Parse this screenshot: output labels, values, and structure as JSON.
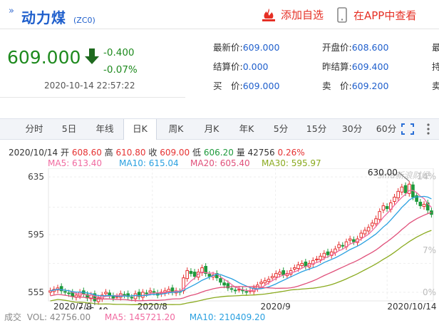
{
  "header": {
    "title": "动力煤",
    "code": "(ZC0)",
    "add_favorite": "添加自选",
    "view_in_app": "在APP中查看"
  },
  "price": {
    "last": "609.000",
    "change": "-0.400",
    "change_pct": "-0.07%",
    "timestamp": "2020-10-14 22:57:22"
  },
  "quote": [
    [
      {
        "k": "最新价:",
        "v": "609.000"
      },
      {
        "k": "开盘价:",
        "v": "608.600"
      }
    ],
    [
      {
        "k": "结算价:",
        "v": "0.000"
      },
      {
        "k": "昨结算:",
        "v": "609.400"
      }
    ],
    [
      {
        "k": "买　价:",
        "v": "609.000"
      },
      {
        "k": "卖　价:",
        "v": "609.200"
      }
    ]
  ],
  "quote_cut": [
    "最",
    "持",
    "卖"
  ],
  "tabs": [
    "分时",
    "5日",
    "年线",
    "日K",
    "周K",
    "月K",
    "年K",
    "5分",
    "15分",
    "30分",
    "60分"
  ],
  "active_tab": "日K",
  "ohlc": {
    "date": "2020/10/14",
    "open_label": "开",
    "open": "608.60",
    "high_label": "高",
    "high": "610.80",
    "close_label": "收",
    "close": "609.00",
    "low_label": "低",
    "low": "606.20",
    "volume": "量 42756",
    "pct": "0.26%"
  },
  "ma": {
    "ma5": "MA5: 613.40",
    "ma10": "MA10: 615.04",
    "ma20": "MA20: 605.40",
    "ma30": "MA30: 595.97"
  },
  "colors": {
    "up": "#e63232",
    "down": "#1e9a3c",
    "ma5": "#f06aa0",
    "ma10": "#2aa0e0",
    "ma20": "#e0507a",
    "ma30": "#8aaa1e",
    "accent": "#1f5fcc"
  },
  "chart_data": {
    "type": "candlestick",
    "price_ticks": [
      635,
      595,
      555
    ],
    "pct_ticks": [
      "14%",
      "7%",
      "0%"
    ],
    "date_ticks": [
      "2020/7/9",
      "2020/8",
      "2020/9",
      "2020/10/14"
    ],
    "max_label": "630.00",
    "min_label": "546.40",
    "watermark": "sina新浪财经",
    "ylim": [
      549,
      641
    ],
    "closes": [
      556,
      557,
      558,
      556,
      555,
      554,
      552,
      553,
      555,
      554,
      551,
      553,
      549,
      551,
      553,
      555,
      553,
      551,
      552,
      554,
      553,
      552,
      551,
      554,
      552,
      555,
      554,
      556,
      555,
      553,
      555,
      556,
      557,
      555,
      556,
      555,
      565,
      570,
      568,
      566,
      569,
      572,
      568,
      566,
      567,
      565,
      562,
      560,
      558,
      557,
      556,
      557,
      556,
      555,
      556,
      558,
      560,
      562,
      563,
      564,
      566,
      568,
      569,
      567,
      568,
      570,
      572,
      574,
      575,
      573,
      575,
      577,
      578,
      580,
      582,
      581,
      583,
      585,
      588,
      587,
      590,
      592,
      590,
      592,
      596,
      598,
      600,
      603,
      606,
      611,
      615,
      613,
      617,
      621,
      625,
      628,
      624,
      630,
      621,
      618,
      615,
      616,
      612,
      609
    ]
  },
  "volume_row": {
    "label": "成交",
    "vol": "VOL: 42756.00",
    "ma5": "MA5: 145721.20",
    "ma10": "MA10: 210409.20"
  }
}
